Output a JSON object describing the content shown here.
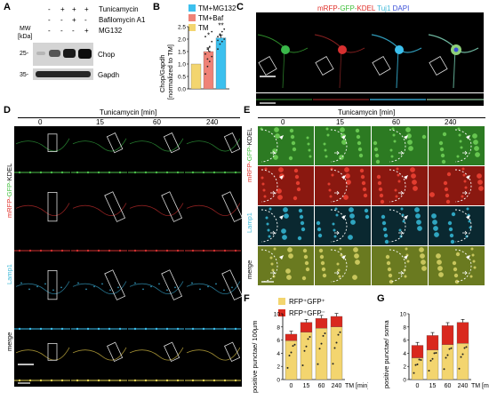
{
  "panel_labels": {
    "A": "A",
    "B": "B",
    "C": "C",
    "D": "D",
    "E": "E",
    "F": "F",
    "G": "G"
  },
  "panelA": {
    "treatments": [
      "Tunicamycin",
      "Bafilomycin A1",
      "MG132"
    ],
    "signs": [
      [
        "-",
        "+",
        "+",
        "+"
      ],
      [
        "-",
        "-",
        "+",
        "-"
      ],
      [
        "-",
        "-",
        "-",
        "+"
      ]
    ],
    "mw_label": "MW",
    "kda_label": "[kDa]",
    "markers": [
      "25-",
      "35-"
    ],
    "bands": [
      "Chop",
      "Gapdh"
    ]
  },
  "panelB": {
    "legend": [
      "TM+MG132",
      "TM+Baf",
      "TM"
    ],
    "ylabel1": "Chop/Gapdh",
    "ylabel2": "[normalized to TM]",
    "yticks": [
      "0.0",
      "0.5",
      "1.0",
      "1.5",
      "2.0",
      "2.5"
    ],
    "sig": [
      "*",
      "**"
    ]
  },
  "panelC": {
    "title_parts": [
      "mRFP-",
      "GFP-",
      "KDEL ",
      "Tuj1 ",
      "DAPI"
    ]
  },
  "panelD": {
    "header": "Tunicamycin [min]",
    "times": [
      "0",
      "15",
      "60",
      "240"
    ],
    "row_labels": {
      "kdel_1": "mRFP-",
      "kdel_2": "GFP-",
      "kdel_3": "KDEL",
      "lamp": "Lamp1",
      "merge": "merge"
    }
  },
  "panelE": {
    "header": "Tunicamycin [min]",
    "times": [
      "0",
      "15",
      "60",
      "240"
    ],
    "row_labels": {
      "kdel_1": "mRFP-",
      "kdel_2": "GFP-",
      "kdel_3": "KDEL",
      "lamp": "Lamp1",
      "merge": "merge"
    }
  },
  "panelF": {
    "legend": [
      "RFP⁺GFP⁺",
      "RFP⁺GFP⁻"
    ],
    "ylabel": "positive punctae/ 100µm",
    "yticks": [
      "0",
      "2",
      "4",
      "6",
      "8",
      "10"
    ],
    "xticks": [
      "0",
      "15",
      "60",
      "240"
    ],
    "xlabel": "TM [min]"
  },
  "panelG": {
    "ylabel": "positive punctae/ soma",
    "yticks": [
      "0",
      "2",
      "4",
      "6",
      "8",
      "10"
    ],
    "xticks": [
      "0",
      "15",
      "60",
      "240"
    ],
    "xlabel": "TM [min]"
  },
  "colors": {
    "yellow": "#f3d56f",
    "red": "#d9281e",
    "salmon": "#ef8277",
    "cyan": "#3cc0ee"
  },
  "chart_data": [
    {
      "panel": "B",
      "type": "bar",
      "categories": [
        "TM",
        "TM+Baf",
        "TM+MG132"
      ],
      "values": [
        1.0,
        1.5,
        2.05
      ],
      "errors": [
        0.0,
        0.15,
        0.12
      ],
      "ylim": [
        0,
        2.5
      ],
      "ylabel": "Chop/Gapdh [normalized to TM]"
    },
    {
      "panel": "F",
      "type": "bar",
      "stacked": true,
      "categories": [
        "0",
        "15",
        "60",
        "240"
      ],
      "series": [
        {
          "name": "RFP⁺GFP⁺",
          "values": [
            5.9,
            7.2,
            7.8,
            8.0
          ]
        },
        {
          "name": "RFP⁺GFP⁻",
          "values": [
            1.0,
            1.5,
            1.5,
            1.6
          ]
        }
      ],
      "ylim": [
        0,
        10
      ],
      "ylabel": "positive punctae/ 100µm",
      "xlabel": "TM [min]"
    },
    {
      "panel": "G",
      "type": "bar",
      "stacked": true,
      "categories": [
        "0",
        "15",
        "60",
        "240"
      ],
      "series": [
        {
          "name": "RFP⁺GFP⁺",
          "values": [
            3.3,
            4.5,
            5.3,
            5.5
          ]
        },
        {
          "name": "RFP⁺GFP⁻",
          "values": [
            1.9,
            2.2,
            2.9,
            3.2
          ]
        }
      ],
      "ylim": [
        0,
        10
      ],
      "ylabel": "positive punctae/ soma",
      "xlabel": "TM [min]"
    }
  ]
}
